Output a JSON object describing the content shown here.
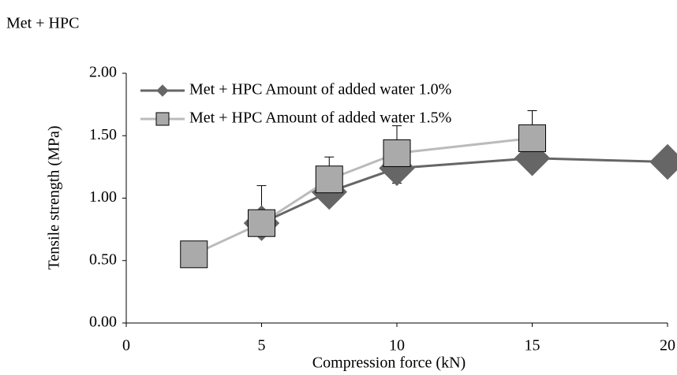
{
  "chart_data": {
    "type": "line",
    "title": "Met + HPC",
    "x_label": "Compression force (kN)",
    "y_label": "Tensile strength  (MPa)",
    "xlim": [
      0,
      20
    ],
    "xticks": [
      0,
      5,
      10,
      15,
      20
    ],
    "ylim": [
      0,
      2
    ],
    "yticks": [
      {
        "value": 0,
        "label": "0.00"
      },
      {
        "value": 0.5,
        "label": "0.50"
      },
      {
        "value": 1,
        "label": "1.00"
      },
      {
        "value": 1.5,
        "label": "1.50"
      },
      {
        "value": 2,
        "label": "2.00"
      }
    ],
    "legend": "upper left",
    "series": [
      {
        "name": "Met + HPC Amount of added water 1.0%",
        "color": "#666666",
        "marker": "diamond",
        "x": [
          5,
          7.5,
          10,
          15,
          20
        ],
        "values": [
          0.8,
          1.05,
          1.24,
          1.32,
          1.29
        ],
        "errors": [
          null,
          0.09,
          0.12,
          null,
          null
        ]
      },
      {
        "name": "Met + HPC Amount of added water 1.5%",
        "color": "#bbbbbb",
        "marker": "square",
        "x": [
          2.5,
          5,
          7.5,
          10,
          15
        ],
        "values": [
          0.55,
          0.8,
          1.15,
          1.36,
          1.48
        ],
        "errors": [
          null,
          0.3,
          0.18,
          0.22,
          0.22
        ]
      }
    ]
  }
}
